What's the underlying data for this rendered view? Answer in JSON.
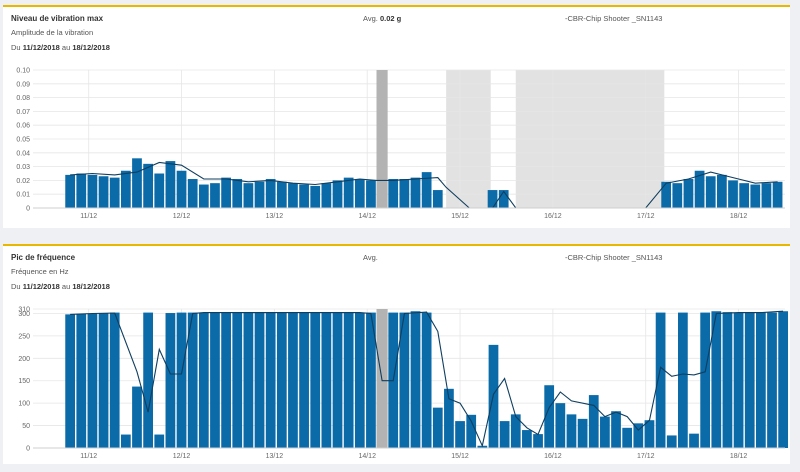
{
  "panels": [
    {
      "title": "Niveau de vibration max",
      "subtitle": "Amplitude de la vibration",
      "avg_label": "Avg.",
      "avg_value": "0.02 g",
      "device": "-CBR-Chip Shooter _SN1143",
      "range_prefix": "Du",
      "range_start": "11/12/2018",
      "range_mid": "au",
      "range_end": "18/12/2018"
    },
    {
      "title": "Pic de fréquence",
      "subtitle": "Fréquence en Hz",
      "avg_label": "Avg.",
      "avg_value": "",
      "device": "-CBR-Chip Shooter _SN1143",
      "range_prefix": "Du",
      "range_start": "11/12/2018",
      "range_mid": "au",
      "range_end": "18/12/2018"
    }
  ],
  "colors": {
    "accent": "#e8b800",
    "bar": "#0b6aa8",
    "line": "#0f3e5f",
    "marker": "#b3b3b3",
    "gap": "#e2e2e2",
    "grid": "#e6e6e6"
  },
  "chart_data": [
    {
      "type": "bar",
      "title": "Niveau de vibration max",
      "xlabel": "",
      "ylabel": "",
      "ylim": [
        0,
        0.1
      ],
      "yticks": [
        "0",
        "0.01",
        "0.02",
        "0.03",
        "0.04",
        "0.05",
        "0.06",
        "0.07",
        "0.08",
        "0.09",
        "0.10"
      ],
      "xticks": [
        "11/12",
        "12/12",
        "13/12",
        "14/12",
        "15/12",
        "16/12",
        "17/12",
        "18/12"
      ],
      "xtick_days": [
        1,
        2,
        3,
        4,
        5,
        6,
        7,
        8
      ],
      "x_range_days": [
        0.4,
        8.5
      ],
      "grid": true,
      "highlight_marker_day": [
        4.1,
        4.22
      ],
      "missing_data_days": [
        [
          4.85,
          5.33
        ],
        [
          5.6,
          7.2
        ]
      ],
      "bars_days": [
        0.8,
        0.92,
        1.04,
        1.16,
        1.28,
        1.4,
        1.52,
        1.64,
        1.76,
        1.88,
        2.0,
        2.12,
        2.24,
        2.36,
        2.48,
        2.6,
        2.72,
        2.84,
        2.96,
        3.08,
        3.2,
        3.32,
        3.44,
        3.56,
        3.68,
        3.8,
        3.92,
        4.04,
        4.28,
        4.4,
        4.52,
        4.64,
        4.76,
        5.35,
        5.47,
        7.22,
        7.34,
        7.46,
        7.58,
        7.7,
        7.82,
        7.94,
        8.06,
        8.18,
        8.3,
        8.42
      ],
      "values": [
        0.024,
        0.025,
        0.024,
        0.023,
        0.022,
        0.027,
        0.036,
        0.032,
        0.025,
        0.034,
        0.027,
        0.021,
        0.017,
        0.018,
        0.022,
        0.021,
        0.018,
        0.019,
        0.021,
        0.019,
        0.018,
        0.017,
        0.016,
        0.018,
        0.02,
        0.022,
        0.021,
        0.02,
        0.021,
        0.021,
        0.022,
        0.026,
        0.013,
        0.013,
        0.013,
        0.019,
        0.018,
        0.021,
        0.027,
        0.023,
        0.024,
        0.02,
        0.018,
        0.017,
        0.018,
        0.019
      ],
      "trend_days": [
        0.8,
        1.04,
        1.28,
        1.52,
        1.76,
        2.0,
        2.24,
        2.48,
        2.72,
        2.96,
        3.2,
        3.44,
        3.68,
        3.92,
        4.1,
        4.28,
        4.52,
        4.76,
        4.85,
        5.1,
        5.35,
        5.47,
        5.6,
        6.0,
        7.0,
        7.22,
        7.46,
        7.7,
        7.94,
        8.18,
        8.42
      ],
      "trend_values": [
        0.024,
        0.025,
        0.024,
        0.026,
        0.033,
        0.031,
        0.021,
        0.021,
        0.019,
        0.02,
        0.018,
        0.017,
        0.019,
        0.021,
        0.02,
        0.02,
        0.021,
        0.022,
        0.015,
        0.0,
        0.0,
        0.012,
        0.0,
        0.0,
        0.0,
        0.018,
        0.021,
        0.026,
        0.022,
        0.018,
        0.019
      ]
    },
    {
      "type": "bar",
      "title": "Pic de fréquence",
      "xlabel": "",
      "ylabel": "",
      "ylim": [
        0,
        310
      ],
      "yticks": [
        "0",
        "50",
        "100",
        "150",
        "200",
        "250",
        "300",
        "310"
      ],
      "ytick_values": [
        0,
        50,
        100,
        150,
        200,
        250,
        300,
        310
      ],
      "xticks": [
        "11/12",
        "12/12",
        "13/12",
        "14/12",
        "15/12",
        "16/12",
        "17/12",
        "18/12"
      ],
      "xtick_days": [
        1,
        2,
        3,
        4,
        5,
        6,
        7,
        8
      ],
      "x_range_days": [
        0.4,
        8.5
      ],
      "grid": true,
      "highlight_marker_day": [
        4.1,
        4.22
      ],
      "bars_days": [
        0.8,
        0.92,
        1.04,
        1.16,
        1.28,
        1.4,
        1.52,
        1.64,
        1.76,
        1.88,
        2.0,
        2.12,
        2.24,
        2.36,
        2.48,
        2.6,
        2.72,
        2.84,
        2.96,
        3.08,
        3.2,
        3.32,
        3.44,
        3.56,
        3.68,
        3.8,
        3.92,
        4.04,
        4.28,
        4.4,
        4.52,
        4.64,
        4.76,
        4.88,
        5.0,
        5.12,
        5.24,
        5.36,
        5.48,
        5.6,
        5.72,
        5.84,
        5.96,
        6.08,
        6.2,
        6.32,
        6.44,
        6.56,
        6.68,
        6.8,
        6.92,
        7.04,
        7.16,
        7.28,
        7.4,
        7.52,
        7.64,
        7.76,
        7.88,
        8.0,
        8.12,
        8.24,
        8.36,
        8.48
      ],
      "values": [
        298,
        299,
        300,
        301,
        302,
        30,
        137,
        302,
        30,
        301,
        302,
        302,
        302,
        302,
        302,
        302,
        302,
        302,
        302,
        302,
        302,
        303,
        302,
        302,
        302,
        302,
        302,
        302,
        302,
        302,
        305,
        302,
        90,
        132,
        60,
        74,
        5,
        230,
        60,
        75,
        40,
        31,
        140,
        100,
        75,
        65,
        118,
        70,
        82,
        45,
        55,
        62,
        302,
        28,
        302,
        32,
        302,
        305,
        303,
        302,
        302,
        302,
        302,
        305
      ],
      "trend_days": [
        0.8,
        1.04,
        1.28,
        1.52,
        1.64,
        1.76,
        1.88,
        2.0,
        2.12,
        2.24,
        2.48,
        2.96,
        3.44,
        3.92,
        4.04,
        4.16,
        4.28,
        4.4,
        4.64,
        4.76,
        4.88,
        5.0,
        5.12,
        5.24,
        5.36,
        5.48,
        5.6,
        5.72,
        5.84,
        5.96,
        6.08,
        6.2,
        6.44,
        6.56,
        6.68,
        6.8,
        6.92,
        7.04,
        7.16,
        7.28,
        7.4,
        7.52,
        7.64,
        7.76,
        8.0,
        8.24,
        8.48
      ],
      "trend_values": [
        298,
        300,
        301,
        170,
        80,
        220,
        165,
        165,
        300,
        302,
        302,
        302,
        302,
        302,
        300,
        150,
        150,
        300,
        303,
        260,
        110,
        100,
        60,
        5,
        120,
        155,
        70,
        45,
        30,
        90,
        125,
        105,
        95,
        70,
        80,
        70,
        40,
        62,
        180,
        160,
        165,
        163,
        170,
        300,
        302,
        302,
        305
      ]
    }
  ]
}
